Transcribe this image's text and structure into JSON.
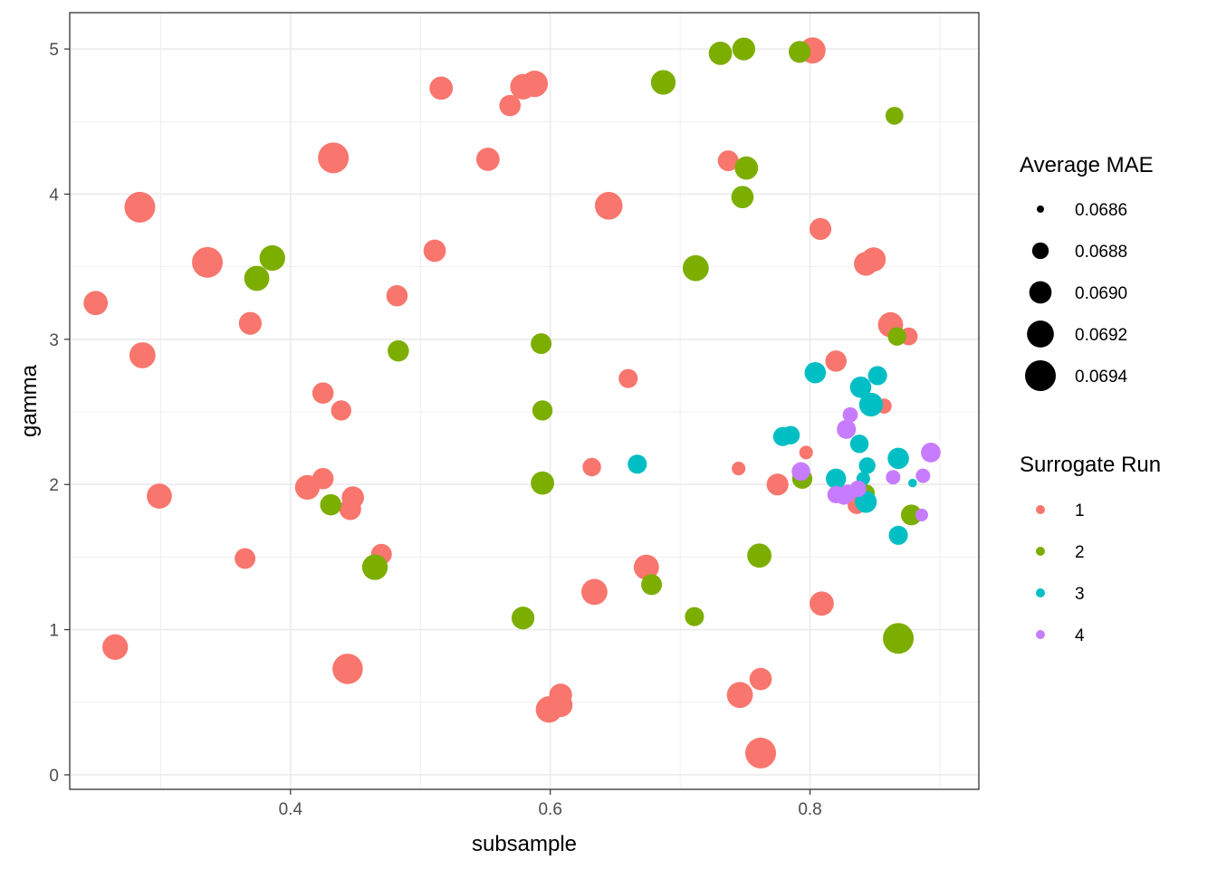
{
  "chart_data": {
    "type": "scatter",
    "title": "",
    "xlabel": "subsample",
    "ylabel": "gamma",
    "xlim": [
      0.23,
      0.93
    ],
    "ylim": [
      -0.1,
      5.25
    ],
    "x_ticks": [
      0.4,
      0.6,
      0.8
    ],
    "x_tick_labels": [
      "0.4",
      "0.6",
      "0.8"
    ],
    "y_ticks": [
      0,
      1,
      2,
      3,
      4,
      5
    ],
    "y_tick_labels": [
      "0",
      "1",
      "2",
      "3",
      "4",
      "5"
    ],
    "grid": true,
    "size_legend": {
      "title": "Average MAE",
      "entries": [
        {
          "label": "0.0686",
          "value": 0.0686
        },
        {
          "label": "0.0688",
          "value": 0.0688
        },
        {
          "label": "0.0690",
          "value": 0.069
        },
        {
          "label": "0.0692",
          "value": 0.0692
        },
        {
          "label": "0.0694",
          "value": 0.0694
        }
      ]
    },
    "color_legend": {
      "title": "Surrogate Run",
      "entries": [
        {
          "label": "1",
          "color": "#F8766D"
        },
        {
          "label": "2",
          "color": "#7CAE00"
        },
        {
          "label": "3",
          "color": "#00BFC4"
        },
        {
          "label": "4",
          "color": "#C77CFF"
        }
      ]
    },
    "legend_position": "right",
    "series": [
      {
        "name": "1",
        "color": "#F8766D",
        "points": [
          [
            0.802,
            4.99,
            0.06916
          ],
          [
            0.588,
            4.76,
            0.06918
          ],
          [
            0.579,
            4.74,
            0.06914
          ],
          [
            0.516,
            4.73,
            0.06904
          ],
          [
            0.569,
            4.61,
            0.06896
          ],
          [
            0.433,
            4.25,
            0.06942
          ],
          [
            0.552,
            4.24,
            0.06904
          ],
          [
            0.737,
            4.23,
            0.06894
          ],
          [
            0.284,
            3.91,
            0.0694
          ],
          [
            0.645,
            3.92,
            0.06924
          ],
          [
            0.808,
            3.76,
            0.06898
          ],
          [
            0.336,
            3.53,
            0.06942
          ],
          [
            0.849,
            3.55,
            0.06908
          ],
          [
            0.843,
            3.52,
            0.06906
          ],
          [
            0.511,
            3.61,
            0.069
          ],
          [
            0.482,
            3.3,
            0.06896
          ],
          [
            0.25,
            3.25,
            0.06908
          ],
          [
            0.369,
            3.11,
            0.06902
          ],
          [
            0.862,
            3.1,
            0.06912
          ],
          [
            0.876,
            3.02,
            0.06884
          ],
          [
            0.286,
            2.89,
            0.06916
          ],
          [
            0.82,
            2.85,
            0.06896
          ],
          [
            0.66,
            2.73,
            0.06888
          ],
          [
            0.425,
            2.63,
            0.06896
          ],
          [
            0.439,
            2.51,
            0.06892
          ],
          [
            0.857,
            2.54,
            0.06876
          ],
          [
            0.797,
            2.22,
            0.06872
          ],
          [
            0.632,
            2.12,
            0.06886
          ],
          [
            0.745,
            2.11,
            0.06872
          ],
          [
            0.413,
            1.98,
            0.0691
          ],
          [
            0.425,
            2.04,
            0.06896
          ],
          [
            0.448,
            1.91,
            0.069
          ],
          [
            0.446,
            1.83,
            0.06898
          ],
          [
            0.775,
            2.0,
            0.06898
          ],
          [
            0.836,
            1.86,
            0.06886
          ],
          [
            0.299,
            1.92,
            0.06912
          ],
          [
            0.47,
            1.52,
            0.06894
          ],
          [
            0.365,
            1.49,
            0.06894
          ],
          [
            0.674,
            1.43,
            0.06912
          ],
          [
            0.634,
            1.26,
            0.06916
          ],
          [
            0.809,
            1.18,
            0.06908
          ],
          [
            0.265,
            0.88,
            0.06914
          ],
          [
            0.444,
            0.73,
            0.06938
          ],
          [
            0.762,
            0.66,
            0.069
          ],
          [
            0.746,
            0.55,
            0.06916
          ],
          [
            0.608,
            0.55,
            0.06902
          ],
          [
            0.599,
            0.45,
            0.06918
          ],
          [
            0.608,
            0.48,
            0.06906
          ],
          [
            0.762,
            0.15,
            0.0694
          ]
        ]
      },
      {
        "name": "2",
        "color": "#7CAE00",
        "points": [
          [
            0.749,
            5.0,
            0.06902
          ],
          [
            0.731,
            4.97,
            0.06904
          ],
          [
            0.792,
            4.98,
            0.06898
          ],
          [
            0.687,
            4.77,
            0.0691
          ],
          [
            0.865,
            4.54,
            0.06884
          ],
          [
            0.751,
            4.18,
            0.06904
          ],
          [
            0.748,
            3.98,
            0.069
          ],
          [
            0.386,
            3.56,
            0.06914
          ],
          [
            0.374,
            3.42,
            0.06912
          ],
          [
            0.712,
            3.49,
            0.06916
          ],
          [
            0.593,
            2.97,
            0.06894
          ],
          [
            0.867,
            3.02,
            0.06886
          ],
          [
            0.483,
            2.92,
            0.06896
          ],
          [
            0.594,
            2.51,
            0.06892
          ],
          [
            0.794,
            2.04,
            0.06892
          ],
          [
            0.431,
            1.86,
            0.06896
          ],
          [
            0.594,
            2.01,
            0.06904
          ],
          [
            0.843,
            1.94,
            0.06884
          ],
          [
            0.878,
            1.79,
            0.06894
          ],
          [
            0.761,
            1.51,
            0.06908
          ],
          [
            0.465,
            1.43,
            0.06914
          ],
          [
            0.678,
            1.31,
            0.06894
          ],
          [
            0.579,
            1.08,
            0.06902
          ],
          [
            0.711,
            1.09,
            0.06888
          ],
          [
            0.868,
            0.94,
            0.0694
          ]
        ]
      },
      {
        "name": "3",
        "color": "#00BFC4",
        "points": [
          [
            0.804,
            2.77,
            0.06896
          ],
          [
            0.852,
            2.75,
            0.06888
          ],
          [
            0.839,
            2.67,
            0.06896
          ],
          [
            0.847,
            2.55,
            0.06906
          ],
          [
            0.785,
            2.34,
            0.06886
          ],
          [
            0.779,
            2.33,
            0.06888
          ],
          [
            0.838,
            2.28,
            0.06886
          ],
          [
            0.667,
            2.14,
            0.06888
          ],
          [
            0.868,
            2.18,
            0.06896
          ],
          [
            0.844,
            2.13,
            0.0688
          ],
          [
            0.82,
            2.04,
            0.06892
          ],
          [
            0.841,
            2.04,
            0.06872
          ],
          [
            0.879,
            2.01,
            0.06862
          ],
          [
            0.843,
            1.88,
            0.06898
          ],
          [
            0.868,
            1.65,
            0.06888
          ]
        ]
      },
      {
        "name": "4",
        "color": "#C77CFF",
        "points": [
          [
            0.831,
            2.48,
            0.06876
          ],
          [
            0.828,
            2.38,
            0.06888
          ],
          [
            0.893,
            2.22,
            0.0689
          ],
          [
            0.793,
            2.09,
            0.06886
          ],
          [
            0.864,
            2.05,
            0.06874
          ],
          [
            0.887,
            2.06,
            0.06874
          ],
          [
            0.837,
            1.97,
            0.0688
          ],
          [
            0.82,
            1.93,
            0.06882
          ],
          [
            0.826,
            1.92,
            0.06882
          ],
          [
            0.829,
            1.94,
            0.06882
          ],
          [
            0.886,
            1.79,
            0.0687
          ]
        ]
      }
    ]
  }
}
